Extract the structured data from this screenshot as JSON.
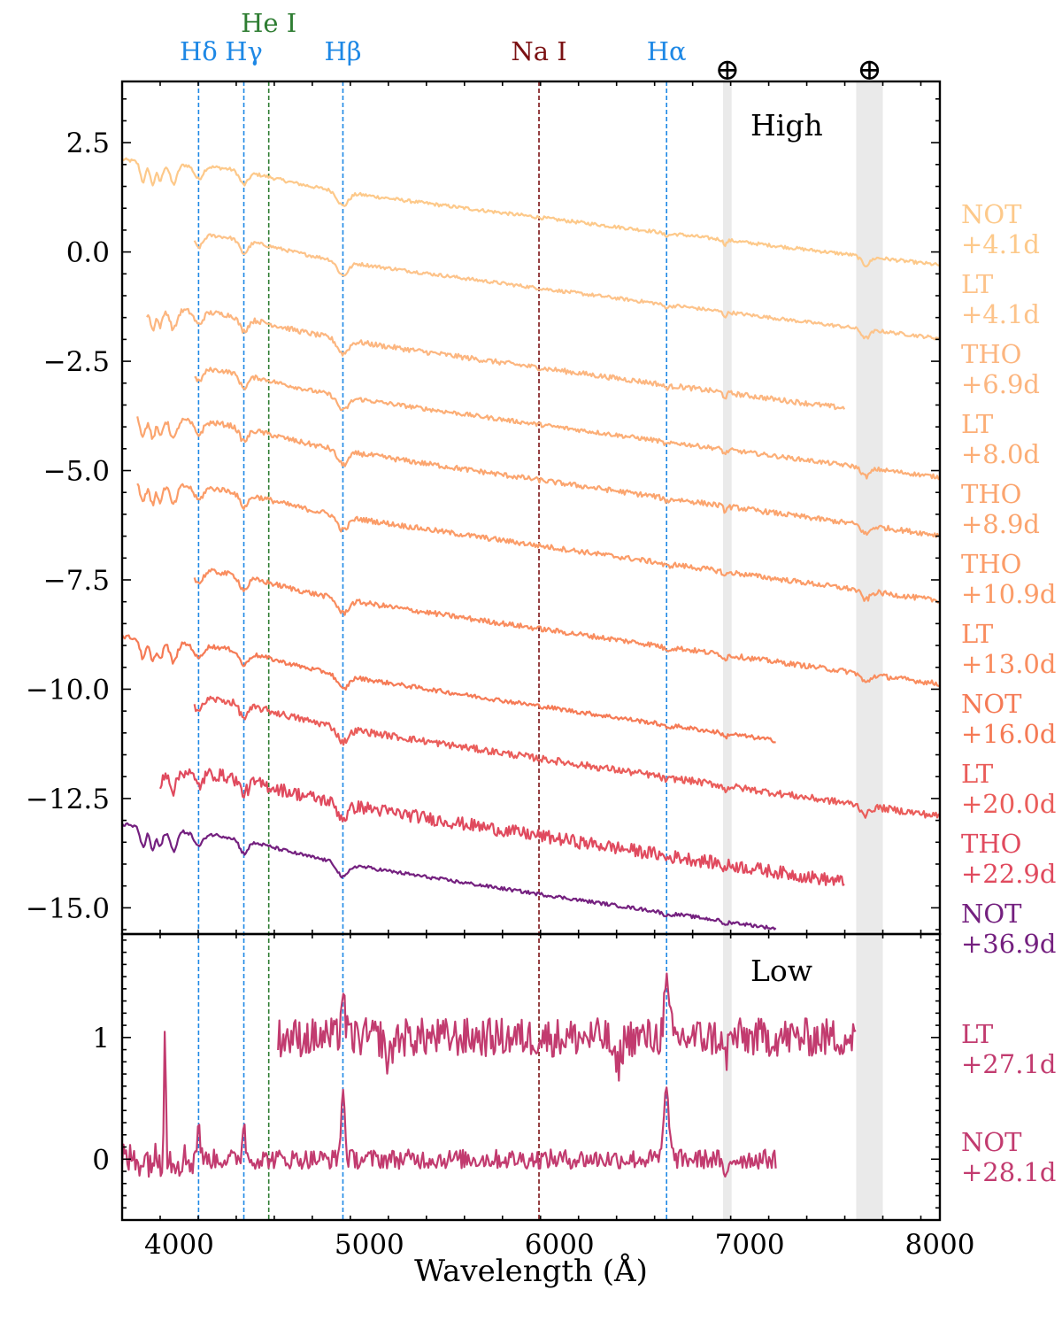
{
  "chart_data": {
    "type": "line",
    "xlabel": "Wavelength (Å)",
    "xlim": [
      3700,
      8000
    ],
    "x_ticks": [
      4000,
      5000,
      6000,
      7000,
      8000
    ],
    "x_tick_labels": [
      "4000",
      "5000",
      "6000",
      "7000",
      "8000"
    ],
    "telluric_bands": [
      {
        "label": "⊕",
        "range": [
          6860,
          6905
        ]
      },
      {
        "label": "⊕",
        "range": [
          7560,
          7700
        ]
      }
    ],
    "line_markers": [
      {
        "label": "Hδ",
        "wavelength": 4102,
        "color": "#1e88e5",
        "row": "low"
      },
      {
        "label": "Hγ",
        "wavelength": 4340,
        "color": "#1e88e5",
        "row": "low"
      },
      {
        "label": "He I",
        "wavelength": 4471,
        "color": "#2e7d32",
        "row": "high"
      },
      {
        "label": "Hβ",
        "wavelength": 4861,
        "color": "#1e88e5",
        "row": "low"
      },
      {
        "label": "Na I",
        "wavelength": 5892,
        "color": "#7b1113",
        "row": "low"
      },
      {
        "label": "Hα",
        "wavelength": 6563,
        "color": "#1e88e5",
        "row": "low"
      }
    ],
    "panels": [
      {
        "name": "High",
        "ylim": [
          -15.6,
          3.9
        ],
        "y_ticks": [
          2.5,
          0,
          -2.5,
          -5,
          -7.5,
          -10,
          -12.5,
          -15
        ],
        "y_tick_labels": [
          "2.5",
          "0.0",
          "−2.5",
          "−5.0",
          "−7.5",
          "−10.0",
          "−12.5",
          "−15.0"
        ],
        "series": [
          {
            "telescope": "NOT",
            "phase": "+4.1d",
            "color": "#fdc98a",
            "x_start": 3700,
            "x_end": 8000,
            "offset": 2.1,
            "slope": 0.38,
            "noise": 0.04
          },
          {
            "telescope": "LT",
            "phase": "+4.1d",
            "color": "#fdc38a",
            "x_start": 4080,
            "x_end": 8000,
            "offset": 0.55,
            "slope": 0.4,
            "noise": 0.04
          },
          {
            "telescope": "THO",
            "phase": "+6.9d",
            "color": "#fcb680",
            "x_start": 3830,
            "x_end": 7500,
            "offset": -1.2,
            "slope": 0.42,
            "noise": 0.06
          },
          {
            "telescope": "LT",
            "phase": "+8.0d",
            "color": "#fcae76",
            "x_start": 4080,
            "x_end": 8000,
            "offset": -2.5,
            "slope": 0.42,
            "noise": 0.05
          },
          {
            "telescope": "THO",
            "phase": "+8.9d",
            "color": "#fba56f",
            "x_start": 3780,
            "x_end": 8000,
            "offset": -3.7,
            "slope": 0.44,
            "noise": 0.06
          },
          {
            "telescope": "THO",
            "phase": "+10.9d",
            "color": "#fb9c68",
            "x_start": 3780,
            "x_end": 8000,
            "offset": -5.2,
            "slope": 0.44,
            "noise": 0.06
          },
          {
            "telescope": "LT",
            "phase": "+13.0d",
            "color": "#f98d5f",
            "x_start": 4080,
            "x_end": 8000,
            "offset": -7.1,
            "slope": 0.44,
            "noise": 0.06
          },
          {
            "telescope": "NOT",
            "phase": "+16.0d",
            "color": "#f57a55",
            "x_start": 3700,
            "x_end": 7140,
            "offset": -8.8,
            "slope": 0.46,
            "noise": 0.05
          },
          {
            "telescope": "LT",
            "phase": "+20.0d",
            "color": "#ea5d5a",
            "x_start": 4080,
            "x_end": 8000,
            "offset": -10.0,
            "slope": 0.46,
            "noise": 0.08
          },
          {
            "telescope": "THO",
            "phase": "+22.9d",
            "color": "#e04a5e",
            "x_start": 3900,
            "x_end": 7500,
            "offset": -11.7,
            "slope": 0.48,
            "noise": 0.15
          },
          {
            "telescope": "NOT",
            "phase": "+36.9d",
            "color": "#74207f",
            "x_start": 3700,
            "x_end": 7140,
            "offset": -13.1,
            "slope": 0.46,
            "noise": 0.04
          }
        ]
      },
      {
        "name": "Low",
        "ylim": [
          -0.5,
          1.85
        ],
        "y_ticks": [
          1,
          0
        ],
        "y_tick_labels": [
          "1",
          "0"
        ],
        "series": [
          {
            "telescope": "LT",
            "phase": "+27.1d",
            "color": "#c23b6f",
            "x_start": 4520,
            "x_end": 7560,
            "offset": 1.0,
            "slope": 0.0,
            "noise": 0.16
          },
          {
            "telescope": "NOT",
            "phase": "+28.1d",
            "color": "#c23b6f",
            "x_start": 3700,
            "x_end": 7140,
            "offset": 0.0,
            "slope": 0.0,
            "noise": 0.08
          }
        ]
      }
    ]
  }
}
